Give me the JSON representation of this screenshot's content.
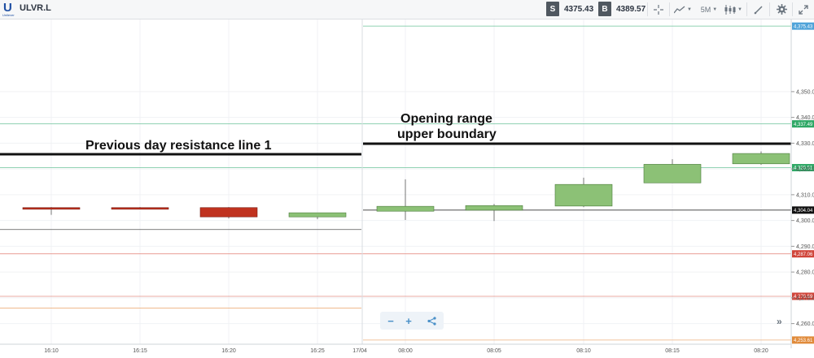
{
  "toolbar": {
    "logo_letter": "U",
    "logo_brand": "Unilever",
    "symbol": "ULVR.L",
    "sell_tag": "S",
    "sell_price": "4375.43",
    "buy_tag": "B",
    "buy_price": "4389.57",
    "timeframe": "5M",
    "icons": [
      "crosshair-icon",
      "chart-type-icon",
      "timeframe-select",
      "candlestick-icon",
      "draw-tool-icon",
      "gear-icon",
      "fullscreen-icon"
    ]
  },
  "colors": {
    "bull": "#8cc176",
    "bear": "#c0321f",
    "green_line": "#58b98a",
    "red_line": "#e07d70",
    "orange_line": "#e8a070",
    "resistance": "#111111"
  },
  "chart_data": {
    "type": "candlestick",
    "y_ticks": [
      "4,350.00",
      "4,340.00",
      "4,330.00",
      "4,320.00",
      "4,310.00",
      "4,300.00",
      "4,290.00",
      "4,280.00",
      "4,270.00",
      "4,260.00"
    ],
    "ylim": [
      4252,
      4378
    ],
    "x_labels": [
      "16:10",
      "16:15",
      "16:20",
      "16:25",
      "17/04",
      "08:00",
      "08:05",
      "08:10",
      "08:15",
      "08:20"
    ],
    "candles": [
      {
        "time": "16:10",
        "open": 4305.0,
        "high": 4305.2,
        "low": 4302.2,
        "close": 4304.6
      },
      {
        "time": "16:15",
        "open": 4305.0,
        "high": 4305.2,
        "low": 4304.4,
        "close": 4304.6
      },
      {
        "time": "16:20",
        "open": 4305.0,
        "high": 4305.2,
        "low": 4300.8,
        "close": 4301.4
      },
      {
        "time": "16:25",
        "open": 4301.4,
        "high": 4302.6,
        "low": 4300.5,
        "close": 4303.0
      },
      {
        "time": "08:00",
        "open": 4303.6,
        "high": 4316.0,
        "low": 4300.2,
        "close": 4305.5
      },
      {
        "time": "08:05",
        "open": 4304.0,
        "high": 4306.4,
        "low": 4299.8,
        "close": 4305.8
      },
      {
        "time": "08:10",
        "open": 4305.6,
        "high": 4316.6,
        "low": 4305.2,
        "close": 4314.0
      },
      {
        "time": "08:15",
        "open": 4314.6,
        "high": 4323.8,
        "low": 4314.6,
        "close": 4321.8
      },
      {
        "time": "08:20",
        "open": 4322.0,
        "high": 4326.8,
        "low": 4321.6,
        "close": 4326.0
      }
    ],
    "levels": [
      {
        "value": 4375.43,
        "label": "4,375.43",
        "color": "#4fa3d9"
      },
      {
        "value": 4337.49,
        "label": "4,337.49",
        "color": "#2fa866"
      },
      {
        "value": 4320.51,
        "label": "4,320.51",
        "color": "#2fa866"
      },
      {
        "value": 4304.04,
        "label": "4,304.04",
        "color": "#111111"
      },
      {
        "value": 4287.06,
        "label": "4,287.06",
        "color": "#d0453a"
      },
      {
        "value": 4270.59,
        "label": "4,270.59",
        "color": "#d0453a"
      },
      {
        "value": 4253.61,
        "label": "4,253.61",
        "color": "#e08a3a"
      }
    ],
    "annotations": {
      "prev_resistance": "Previous day resistance line 1",
      "opening_range_1": "Opening range",
      "opening_range_2": "upper boundary"
    }
  },
  "controls": {
    "zoom_out": "−",
    "zoom_in": "+",
    "share": "share-icon",
    "fast_forward": "»"
  }
}
